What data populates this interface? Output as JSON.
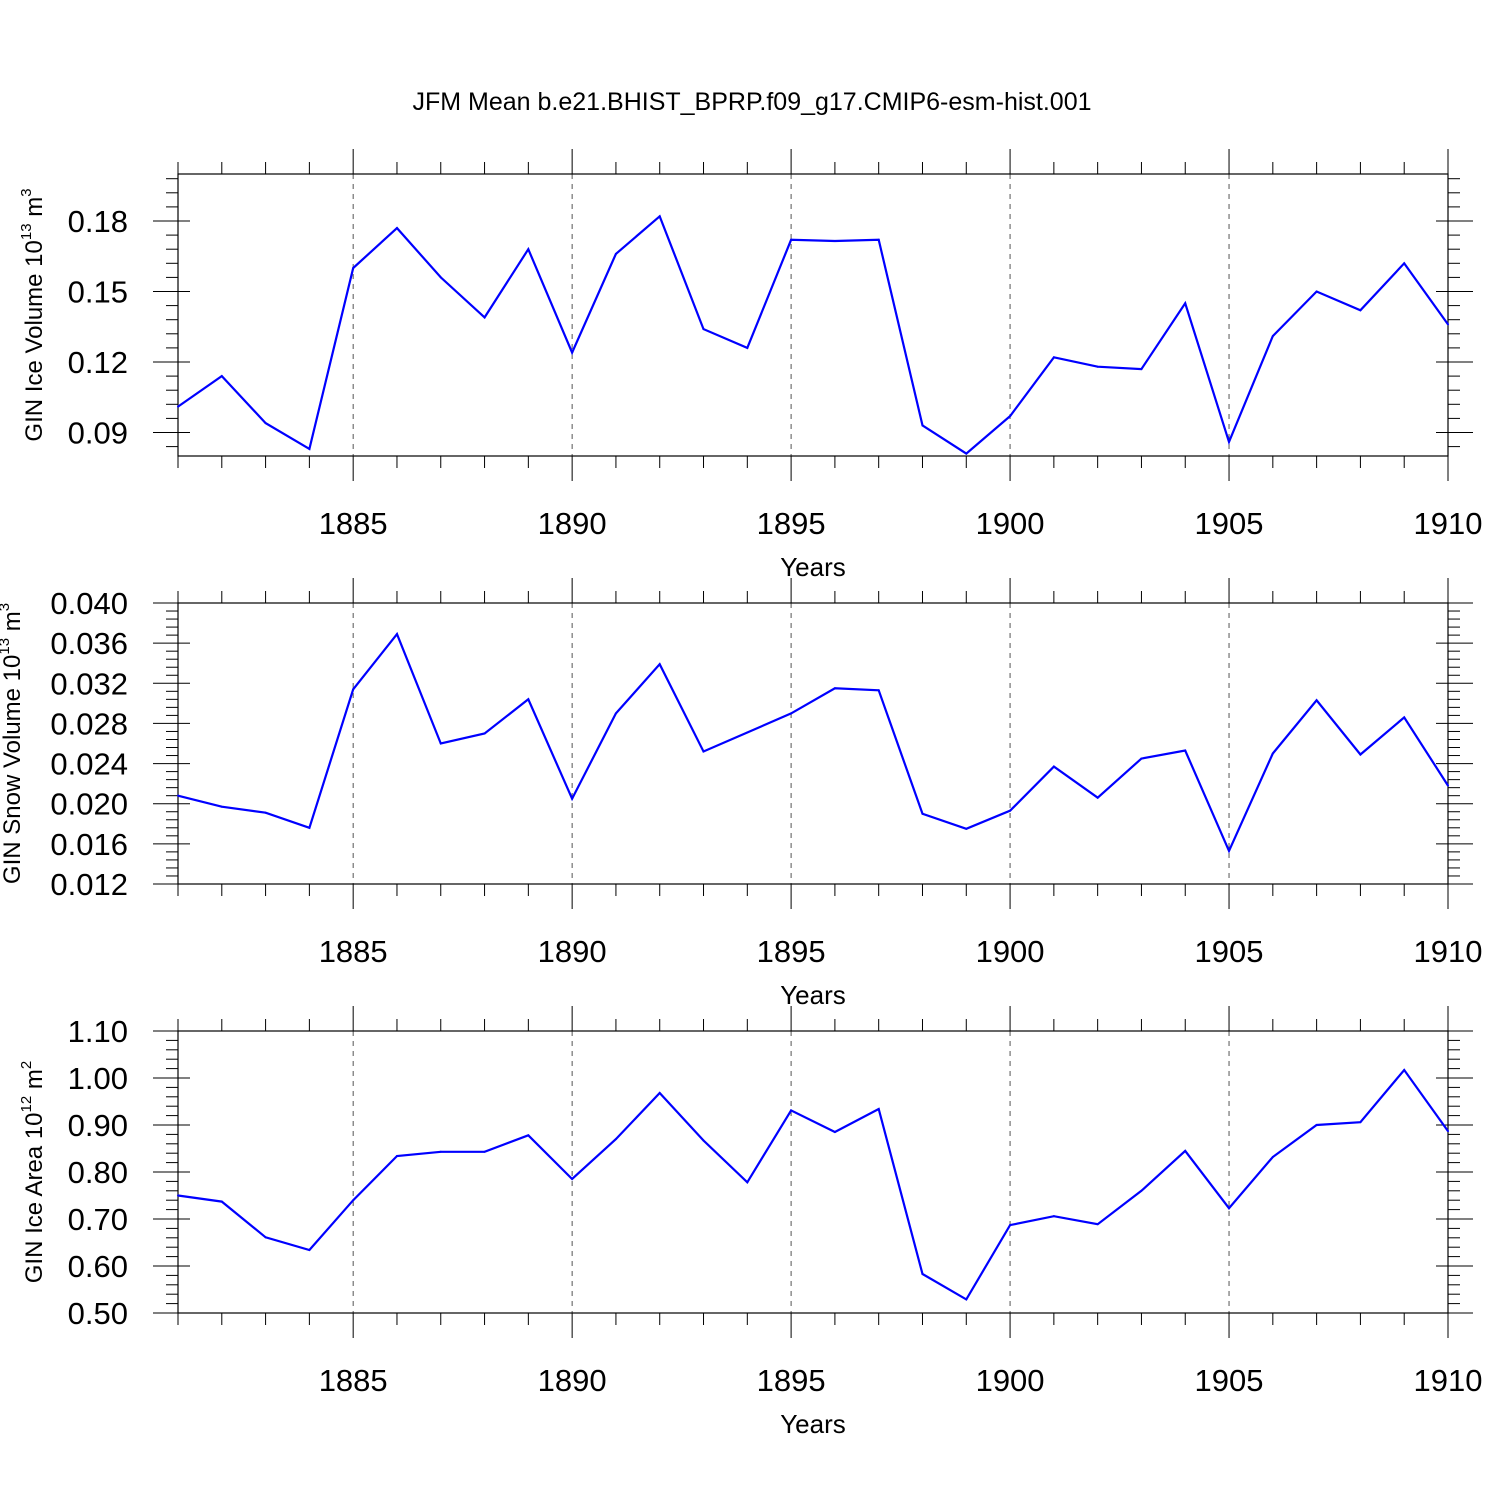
{
  "figure_title": "JFM Mean b.e21.BHIST_BPRP.f09_g17.CMIP6-esm-hist.001",
  "colors": {
    "line": "#0000ff",
    "axis": "#000000",
    "grid": "#555555"
  },
  "chart_data": [
    {
      "type": "line",
      "ylabel": {
        "text": "GIN Ice Volume 10",
        "exp": "13",
        "unit": " m",
        "unit_exp": "3"
      },
      "xlabel": "Years",
      "xlim": [
        1881,
        1910
      ],
      "ylim": [
        0.08,
        0.2
      ],
      "yticks": [
        0.09,
        0.12,
        0.15,
        0.18
      ],
      "ytick_labels": [
        "0.09",
        "0.12",
        "0.15",
        "0.18"
      ],
      "xticks": [
        1885,
        1890,
        1895,
        1900,
        1905,
        1910
      ],
      "xtick_labels": [
        "1885",
        "1890",
        "1895",
        "1900",
        "1905",
        "1910"
      ],
      "grid": "dashed vertical at major x ticks",
      "x": [
        1881,
        1882,
        1883,
        1884,
        1885,
        1886,
        1887,
        1888,
        1889,
        1890,
        1891,
        1892,
        1893,
        1894,
        1895,
        1896,
        1897,
        1898,
        1899,
        1900,
        1901,
        1902,
        1903,
        1904,
        1905,
        1906,
        1907,
        1908,
        1909,
        1910
      ],
      "series": [
        {
          "values": [
            0.101,
            0.114,
            0.094,
            0.083,
            0.16,
            0.177,
            0.156,
            0.139,
            0.168,
            0.124,
            0.166,
            0.182,
            0.134,
            0.126,
            0.172,
            0.1715,
            0.172,
            0.093,
            0.081,
            0.097,
            0.122,
            0.118,
            0.117,
            0.145,
            0.086,
            0.131,
            0.15,
            0.142,
            0.162,
            0.136
          ]
        }
      ]
    },
    {
      "type": "line",
      "ylabel": {
        "text": "GIN Snow Volume 10",
        "exp": "13",
        "unit": " m",
        "unit_exp": "3"
      },
      "xlabel": "Years",
      "xlim": [
        1881,
        1910
      ],
      "ylim": [
        0.012,
        0.04
      ],
      "yticks": [
        0.012,
        0.016,
        0.02,
        0.024,
        0.028,
        0.032,
        0.036,
        0.04
      ],
      "ytick_labels": [
        "0.012",
        "0.016",
        "0.020",
        "0.024",
        "0.028",
        "0.032",
        "0.036",
        "0.040"
      ],
      "xticks": [
        1885,
        1890,
        1895,
        1900,
        1905,
        1910
      ],
      "xtick_labels": [
        "1885",
        "1890",
        "1895",
        "1900",
        "1905",
        "1910"
      ],
      "grid": "dashed vertical at major x ticks",
      "x": [
        1881,
        1882,
        1883,
        1884,
        1885,
        1886,
        1887,
        1888,
        1889,
        1890,
        1891,
        1892,
        1893,
        1894,
        1895,
        1896,
        1897,
        1898,
        1899,
        1900,
        1901,
        1902,
        1903,
        1904,
        1905,
        1906,
        1907,
        1908,
        1909,
        1910
      ],
      "series": [
        {
          "values": [
            0.0208,
            0.0197,
            0.0191,
            0.0176,
            0.0314,
            0.0369,
            0.026,
            0.027,
            0.0304,
            0.0205,
            0.029,
            0.0339,
            0.0252,
            0.0271,
            0.029,
            0.0315,
            0.0313,
            0.019,
            0.0175,
            0.0193,
            0.0237,
            0.0206,
            0.0245,
            0.0253,
            0.0153,
            0.025,
            0.0303,
            0.0249,
            0.0286,
            0.0218
          ]
        }
      ]
    },
    {
      "type": "line",
      "ylabel": {
        "text": "GIN Ice Area 10",
        "exp": "12",
        "unit": " m",
        "unit_exp": "2"
      },
      "xlabel": "Years",
      "xlim": [
        1881,
        1910
      ],
      "ylim": [
        0.5,
        1.1
      ],
      "yticks": [
        0.5,
        0.6,
        0.7,
        0.8,
        0.9,
        1.0,
        1.1
      ],
      "ytick_labels": [
        "0.50",
        "0.60",
        "0.70",
        "0.80",
        "0.90",
        "1.00",
        "1.10"
      ],
      "xticks": [
        1885,
        1890,
        1895,
        1900,
        1905,
        1910
      ],
      "xtick_labels": [
        "1885",
        "1890",
        "1895",
        "1900",
        "1905",
        "1910"
      ],
      "grid": "dashed vertical at major x ticks",
      "x": [
        1881,
        1882,
        1883,
        1884,
        1885,
        1886,
        1887,
        1888,
        1889,
        1890,
        1891,
        1892,
        1893,
        1894,
        1895,
        1896,
        1897,
        1898,
        1899,
        1900,
        1901,
        1902,
        1903,
        1904,
        1905,
        1906,
        1907,
        1908,
        1909,
        1910
      ],
      "series": [
        {
          "values": [
            0.75,
            0.737,
            0.661,
            0.634,
            0.74,
            0.834,
            0.843,
            0.843,
            0.878,
            0.785,
            0.87,
            0.968,
            0.867,
            0.778,
            0.931,
            0.885,
            0.934,
            0.583,
            0.529,
            0.687,
            0.706,
            0.689,
            0.76,
            0.845,
            0.723,
            0.832,
            0.9,
            0.906,
            1.017,
            0.887
          ]
        }
      ]
    }
  ]
}
